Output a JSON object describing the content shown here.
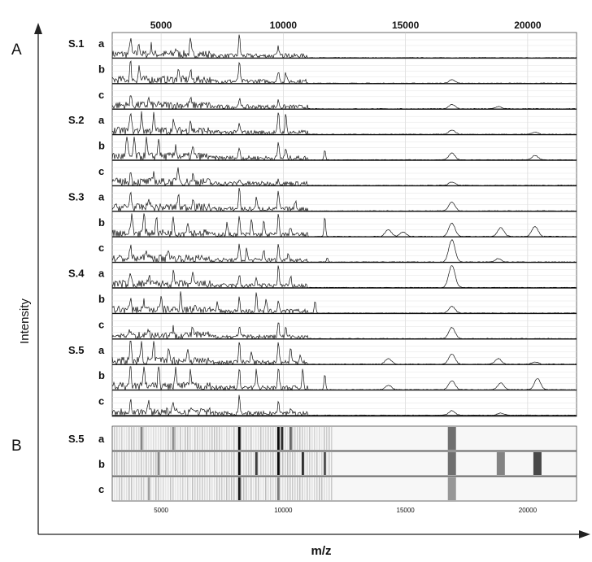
{
  "figure": {
    "panel_a_label": "A",
    "panel_b_label": "B",
    "y_axis_label": "Intensity",
    "x_axis_label": "m/z"
  },
  "chart_data": [
    {
      "type": "line",
      "panel": "A",
      "description_of_data": "stacked mass spectra, relative intensity",
      "xlim": [
        3000,
        22000
      ],
      "x_ticks": [
        5000,
        10000,
        15000,
        20000
      ],
      "x_tick_labels": [
        "5000",
        "10000",
        "15000",
        "20000"
      ],
      "groups": [
        "S.1",
        "S.2",
        "S.3",
        "S.4",
        "S.5"
      ],
      "replicates": [
        "a",
        "b",
        "c"
      ],
      "series": [
        {
          "group": "S.1",
          "rep": "a",
          "peaks": [
            [
              3750,
              0.8
            ],
            [
              4100,
              0.5
            ],
            [
              4600,
              0.4
            ],
            [
              5600,
              0.3
            ],
            [
              6200,
              0.6
            ],
            [
              8200,
              1.0
            ],
            [
              9800,
              0.4
            ],
            [
              10100,
              0.2
            ]
          ]
        },
        {
          "group": "S.1",
          "rep": "b",
          "peaks": [
            [
              3750,
              0.8
            ],
            [
              4100,
              0.6
            ],
            [
              5700,
              0.5
            ],
            [
              6200,
              0.4
            ],
            [
              8200,
              0.9
            ],
            [
              9800,
              0.5
            ],
            [
              10100,
              0.4
            ],
            [
              16900,
              0.15
            ]
          ]
        },
        {
          "group": "S.1",
          "rep": "c",
          "peaks": [
            [
              3750,
              0.5
            ],
            [
              4500,
              0.3
            ],
            [
              6200,
              0.3
            ],
            [
              8200,
              0.4
            ],
            [
              9800,
              0.3
            ],
            [
              16900,
              0.2
            ],
            [
              18800,
              0.1
            ]
          ]
        },
        {
          "group": "S.2",
          "rep": "a",
          "peaks": [
            [
              3750,
              1.0
            ],
            [
              4200,
              0.8
            ],
            [
              4700,
              0.7
            ],
            [
              5500,
              0.5
            ],
            [
              6200,
              0.5
            ],
            [
              8200,
              0.4
            ],
            [
              9800,
              0.9
            ],
            [
              10100,
              0.8
            ],
            [
              16900,
              0.2
            ],
            [
              20300,
              0.1
            ]
          ]
        },
        {
          "group": "S.2",
          "rep": "b",
          "peaks": [
            [
              3600,
              1.0
            ],
            [
              3900,
              0.9
            ],
            [
              4400,
              0.8
            ],
            [
              4900,
              0.9
            ],
            [
              5600,
              0.5
            ],
            [
              6300,
              0.4
            ],
            [
              8200,
              0.5
            ],
            [
              9800,
              0.7
            ],
            [
              10100,
              0.4
            ],
            [
              11700,
              0.45
            ],
            [
              16900,
              0.3
            ],
            [
              20300,
              0.2
            ]
          ]
        },
        {
          "group": "S.2",
          "rep": "c",
          "peaks": [
            [
              3750,
              0.4
            ],
            [
              4700,
              0.4
            ],
            [
              5700,
              0.7
            ],
            [
              6300,
              0.3
            ],
            [
              8200,
              0.2
            ],
            [
              9800,
              0.2
            ],
            [
              16900,
              0.15
            ]
          ]
        },
        {
          "group": "S.3",
          "rep": "a",
          "peaks": [
            [
              3750,
              0.8
            ],
            [
              4500,
              0.5
            ],
            [
              5700,
              0.6
            ],
            [
              6300,
              0.5
            ],
            [
              8200,
              1.0
            ],
            [
              8900,
              0.5
            ],
            [
              9800,
              0.8
            ],
            [
              10500,
              0.4
            ],
            [
              16900,
              0.4
            ]
          ]
        },
        {
          "group": "S.3",
          "rep": "b",
          "peaks": [
            [
              3800,
              1.0
            ],
            [
              4300,
              0.9
            ],
            [
              4800,
              0.8
            ],
            [
              5500,
              0.7
            ],
            [
              6100,
              0.6
            ],
            [
              7700,
              0.5
            ],
            [
              8200,
              0.8
            ],
            [
              8700,
              0.7
            ],
            [
              9200,
              0.6
            ],
            [
              9800,
              0.9
            ],
            [
              10300,
              0.4
            ],
            [
              11700,
              0.9
            ],
            [
              14300,
              0.3
            ],
            [
              14900,
              0.2
            ],
            [
              16900,
              0.6
            ],
            [
              18900,
              0.4
            ],
            [
              20300,
              0.45
            ]
          ]
        },
        {
          "group": "S.3",
          "rep": "c",
          "peaks": [
            [
              3750,
              0.6
            ],
            [
              4400,
              0.5
            ],
            [
              5300,
              0.5
            ],
            [
              8200,
              0.7
            ],
            [
              8500,
              0.5
            ],
            [
              9200,
              0.5
            ],
            [
              9800,
              0.7
            ],
            [
              10200,
              0.4
            ],
            [
              11800,
              0.2
            ],
            [
              16900,
              1.0
            ],
            [
              18800,
              0.15
            ]
          ]
        },
        {
          "group": "S.4",
          "rep": "a",
          "peaks": [
            [
              3750,
              0.5
            ],
            [
              4500,
              0.4
            ],
            [
              5500,
              0.5
            ],
            [
              6300,
              0.4
            ],
            [
              8200,
              0.5
            ],
            [
              8900,
              0.4
            ],
            [
              9800,
              0.9
            ],
            [
              10300,
              0.4
            ],
            [
              16900,
              1.0
            ]
          ]
        },
        {
          "group": "S.4",
          "rep": "b",
          "peaks": [
            [
              3750,
              0.4
            ],
            [
              4300,
              0.4
            ],
            [
              5000,
              0.5
            ],
            [
              5800,
              0.8
            ],
            [
              6400,
              0.3
            ],
            [
              7300,
              0.4
            ],
            [
              8200,
              0.6
            ],
            [
              8900,
              0.8
            ],
            [
              9300,
              0.5
            ],
            [
              9800,
              0.5
            ],
            [
              11300,
              0.55
            ],
            [
              16900,
              0.3
            ]
          ]
        },
        {
          "group": "S.4",
          "rep": "c",
          "peaks": [
            [
              3750,
              0.3
            ],
            [
              4500,
              0.3
            ],
            [
              5500,
              0.3
            ],
            [
              6300,
              0.4
            ],
            [
              8200,
              0.5
            ],
            [
              9800,
              0.7
            ],
            [
              10100,
              0.4
            ],
            [
              16900,
              0.5
            ]
          ]
        },
        {
          "group": "S.5",
          "rep": "a",
          "peaks": [
            [
              3750,
              1.0
            ],
            [
              4200,
              0.9
            ],
            [
              4700,
              0.8
            ],
            [
              5300,
              0.7
            ],
            [
              6100,
              0.6
            ],
            [
              8200,
              1.0
            ],
            [
              8700,
              0.5
            ],
            [
              9800,
              1.0
            ],
            [
              10300,
              0.7
            ],
            [
              10700,
              0.4
            ],
            [
              14300,
              0.25
            ],
            [
              16900,
              0.45
            ],
            [
              18800,
              0.25
            ],
            [
              20300,
              0.1
            ]
          ]
        },
        {
          "group": "S.5",
          "rep": "b",
          "peaks": [
            [
              3750,
              1.0
            ],
            [
              4300,
              0.9
            ],
            [
              4900,
              0.9
            ],
            [
              5600,
              0.8
            ],
            [
              6200,
              0.7
            ],
            [
              8200,
              0.9
            ],
            [
              8900,
              0.8
            ],
            [
              9800,
              1.0
            ],
            [
              10800,
              0.9
            ],
            [
              11700,
              0.7
            ],
            [
              14300,
              0.2
            ],
            [
              16900,
              0.4
            ],
            [
              18900,
              0.3
            ],
            [
              20400,
              0.5
            ]
          ]
        },
        {
          "group": "S.5",
          "rep": "c",
          "peaks": [
            [
              3750,
              0.6
            ],
            [
              4500,
              0.4
            ],
            [
              5500,
              0.3
            ],
            [
              6300,
              0.2
            ],
            [
              8200,
              0.8
            ],
            [
              9800,
              0.5
            ],
            [
              10300,
              0.3
            ],
            [
              16900,
              0.2
            ],
            [
              18900,
              0.1
            ]
          ]
        }
      ]
    },
    {
      "type": "heatmap",
      "panel": "B",
      "group": "S.5",
      "rows": [
        "a",
        "b",
        "c"
      ],
      "xlim": [
        3000,
        22000
      ],
      "x_ticks": [
        5000,
        10000,
        15000,
        20000
      ],
      "x_tick_labels": [
        "5000",
        "10000",
        "15000",
        "20000"
      ],
      "bands": [
        {
          "row": "a",
          "bands": [
            [
              8200,
              1.0
            ],
            [
              9800,
              1.0
            ],
            [
              9950,
              0.8
            ],
            [
              10300,
              0.5
            ],
            [
              16900,
              0.5
            ],
            [
              5500,
              0.3
            ],
            [
              4200,
              0.3
            ]
          ]
        },
        {
          "row": "b",
          "bands": [
            [
              8200,
              1.0
            ],
            [
              8900,
              0.7
            ],
            [
              9800,
              1.0
            ],
            [
              10800,
              0.8
            ],
            [
              11700,
              0.6
            ],
            [
              16900,
              0.5
            ],
            [
              18900,
              0.4
            ],
            [
              20400,
              0.7
            ],
            [
              4900,
              0.3
            ]
          ]
        },
        {
          "row": "c",
          "bands": [
            [
              8200,
              0.9
            ],
            [
              9800,
              0.4
            ],
            [
              16900,
              0.3
            ],
            [
              4500,
              0.2
            ]
          ]
        }
      ]
    }
  ]
}
